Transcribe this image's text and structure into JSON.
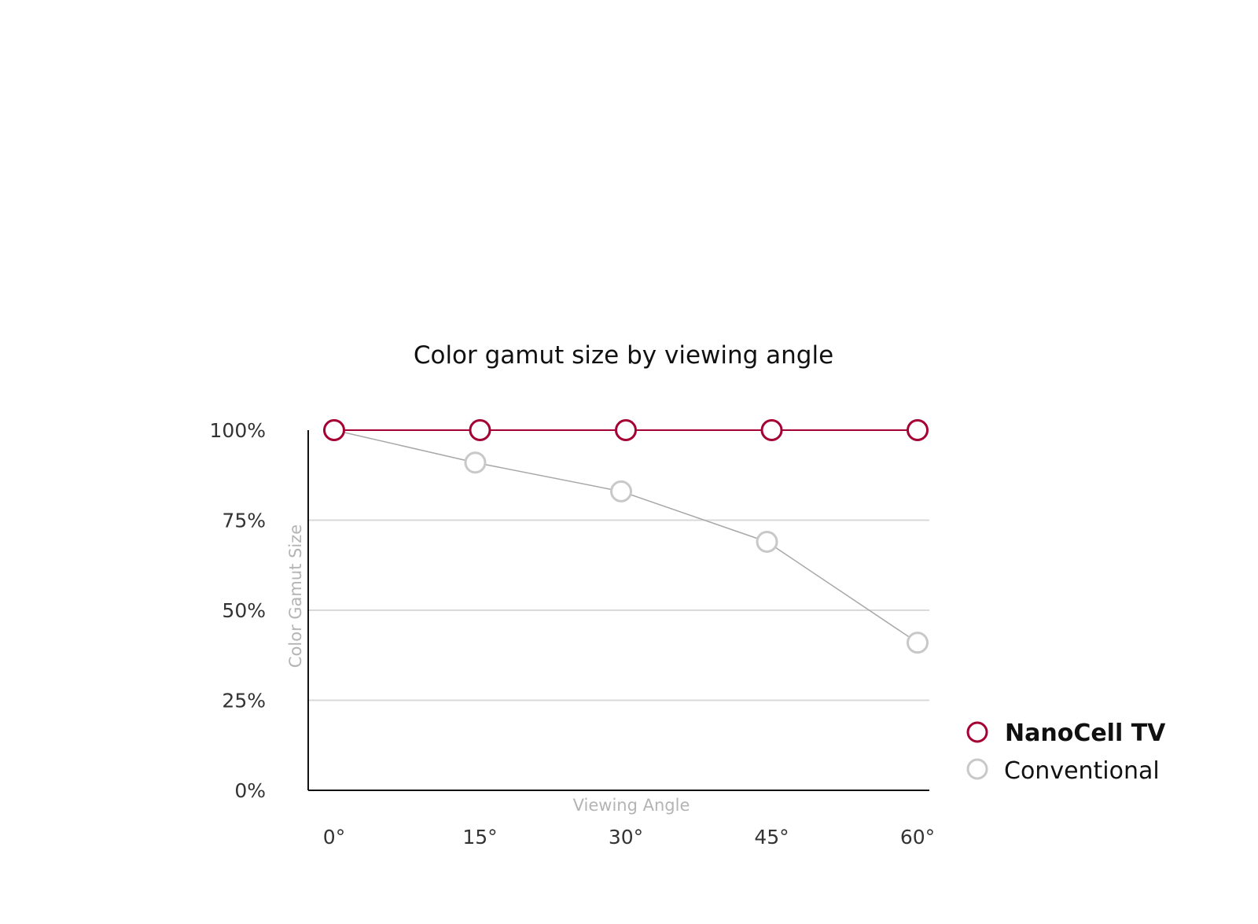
{
  "chart_data": {
    "type": "line",
    "title": "Color gamut size by viewing angle",
    "xlabel": "Viewing Angle",
    "ylabel": "Color Gamut Size",
    "categories": [
      "0°",
      "15°",
      "30°",
      "45°",
      "60°"
    ],
    "y_ticks": [
      "0%",
      "25%",
      "50%",
      "75%",
      "100%"
    ],
    "ylim": [
      0,
      100
    ],
    "grid": true,
    "legend_position": "right",
    "series": [
      {
        "name": "NanoCell TV",
        "values": [
          100,
          100,
          100,
          100,
          100
        ],
        "color": "#a50034"
      },
      {
        "name": "Conventional",
        "values": [
          100,
          91,
          83,
          69,
          41
        ],
        "color": "#bfbfbf"
      }
    ]
  }
}
